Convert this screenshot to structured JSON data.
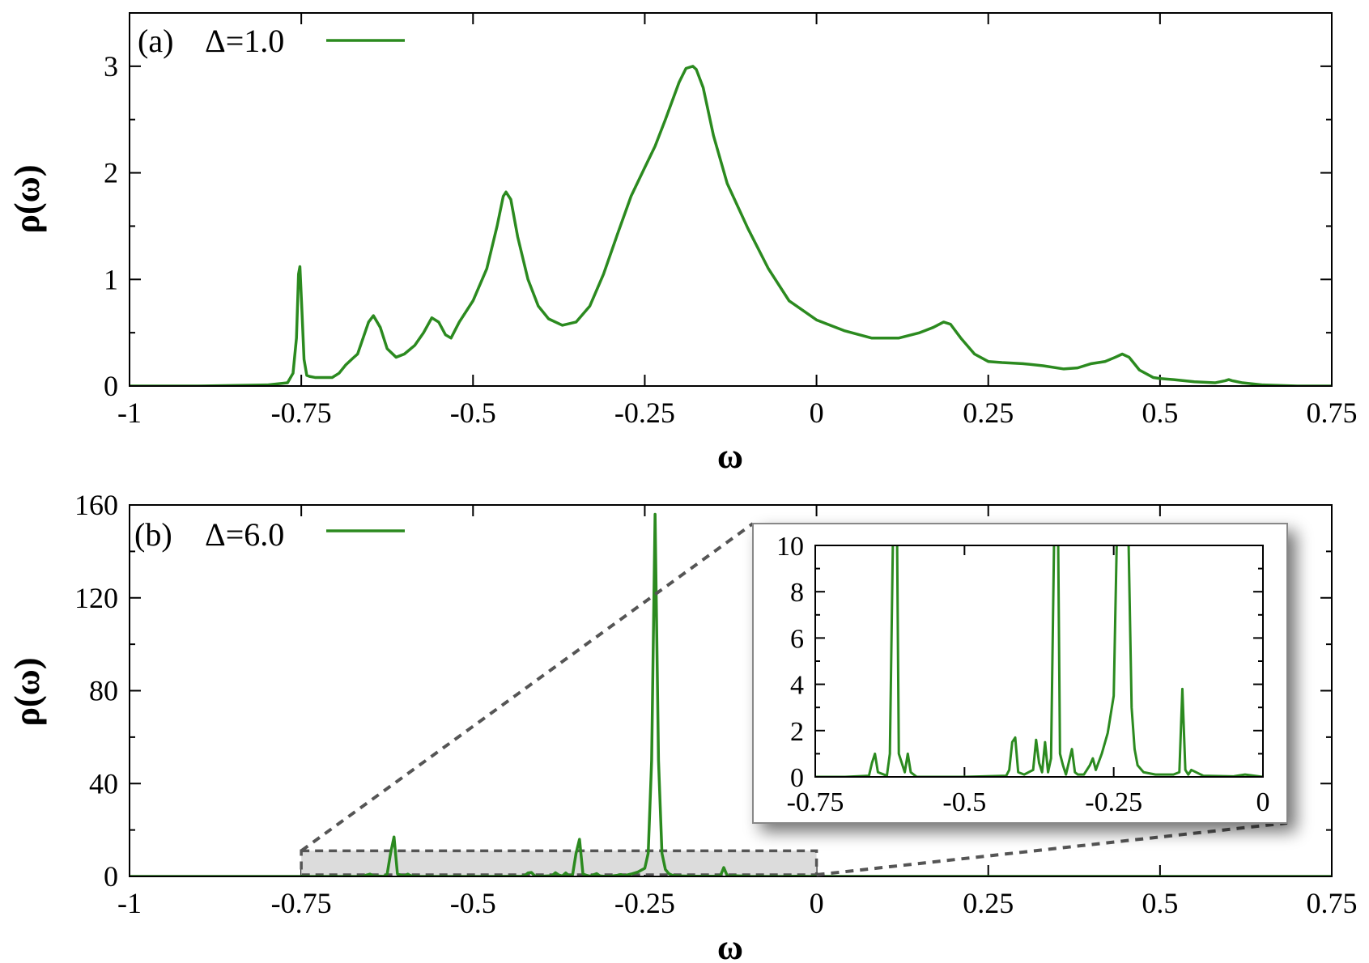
{
  "colors": {
    "line": "#2b8a1f",
    "axis": "#000000",
    "zoom_box_fill": "#dcdcdc",
    "zoom_box_stroke": "#555555",
    "inset_shadow": "#9a9a9a"
  },
  "chart_data": [
    {
      "type": "line",
      "panel_label": "(a)",
      "series": [
        {
          "name": "Δ=1.0",
          "x": [
            -1.0,
            -0.9,
            -0.8,
            -0.77,
            -0.762,
            -0.757,
            -0.754,
            -0.752,
            -0.749,
            -0.746,
            -0.742,
            -0.738,
            -0.73,
            -0.72,
            -0.705,
            -0.695,
            -0.685,
            -0.675,
            -0.668,
            -0.66,
            -0.652,
            -0.645,
            -0.635,
            -0.625,
            -0.612,
            -0.6,
            -0.585,
            -0.572,
            -0.56,
            -0.55,
            -0.54,
            -0.532,
            -0.52,
            -0.5,
            -0.48,
            -0.465,
            -0.456,
            -0.452,
            -0.445,
            -0.435,
            -0.42,
            -0.405,
            -0.39,
            -0.37,
            -0.35,
            -0.33,
            -0.31,
            -0.29,
            -0.27,
            -0.25,
            -0.235,
            -0.22,
            -0.2,
            -0.19,
            -0.18,
            -0.175,
            -0.165,
            -0.15,
            -0.13,
            -0.1,
            -0.07,
            -0.04,
            0.0,
            0.04,
            0.08,
            0.12,
            0.15,
            0.17,
            0.185,
            0.195,
            0.21,
            0.23,
            0.25,
            0.27,
            0.3,
            0.33,
            0.36,
            0.38,
            0.4,
            0.42,
            0.435,
            0.445,
            0.455,
            0.47,
            0.49,
            0.5,
            0.52,
            0.55,
            0.58,
            0.595,
            0.6,
            0.605,
            0.62,
            0.65,
            0.7,
            0.75
          ],
          "y": [
            0.0,
            0.0,
            0.01,
            0.03,
            0.12,
            0.45,
            1.05,
            1.12,
            0.7,
            0.25,
            0.1,
            0.09,
            0.08,
            0.08,
            0.08,
            0.12,
            0.2,
            0.26,
            0.3,
            0.45,
            0.6,
            0.66,
            0.55,
            0.35,
            0.27,
            0.3,
            0.38,
            0.5,
            0.64,
            0.6,
            0.48,
            0.45,
            0.6,
            0.8,
            1.1,
            1.5,
            1.78,
            1.82,
            1.75,
            1.4,
            1.0,
            0.75,
            0.63,
            0.57,
            0.6,
            0.75,
            1.05,
            1.42,
            1.78,
            2.05,
            2.25,
            2.5,
            2.85,
            2.98,
            3.0,
            2.97,
            2.8,
            2.35,
            1.9,
            1.48,
            1.1,
            0.8,
            0.62,
            0.52,
            0.45,
            0.45,
            0.5,
            0.55,
            0.6,
            0.58,
            0.45,
            0.3,
            0.23,
            0.22,
            0.21,
            0.19,
            0.16,
            0.17,
            0.21,
            0.23,
            0.27,
            0.3,
            0.27,
            0.15,
            0.08,
            0.07,
            0.06,
            0.04,
            0.03,
            0.05,
            0.06,
            0.05,
            0.03,
            0.01,
            0.0,
            0.0
          ]
        }
      ],
      "xlabel": "ω",
      "ylabel": "ρ(ω)",
      "xlim": [
        -1.0,
        0.75
      ],
      "ylim": [
        0,
        3.5
      ],
      "xticks": [
        "-1",
        "-0.75",
        "-0.5",
        "-0.25",
        "0",
        "0.25",
        "0.5",
        "0.75"
      ],
      "xtick_values": [
        -1.0,
        -0.75,
        -0.5,
        -0.25,
        0.0,
        0.25,
        0.5,
        0.75
      ],
      "yticks": [
        "0",
        "1",
        "2",
        "3"
      ],
      "ytick_values": [
        0,
        1,
        2,
        3
      ],
      "legend_position": "top-left",
      "grid": false
    },
    {
      "type": "line",
      "panel_label": "(b)",
      "series": [
        {
          "name": "Δ=6.0",
          "x": [
            -1.0,
            -0.8,
            -0.7,
            -0.66,
            -0.655,
            -0.65,
            -0.645,
            -0.63,
            -0.625,
            -0.62,
            -0.615,
            -0.61,
            -0.6,
            -0.595,
            -0.59,
            -0.58,
            -0.5,
            -0.43,
            -0.425,
            -0.42,
            -0.415,
            -0.41,
            -0.4,
            -0.385,
            -0.38,
            -0.375,
            -0.37,
            -0.365,
            -0.36,
            -0.355,
            -0.35,
            -0.345,
            -0.34,
            -0.335,
            -0.33,
            -0.32,
            -0.315,
            -0.31,
            -0.3,
            -0.29,
            -0.285,
            -0.28,
            -0.27,
            -0.26,
            -0.25,
            -0.245,
            -0.24,
            -0.235,
            -0.23,
            -0.225,
            -0.22,
            -0.215,
            -0.21,
            -0.2,
            -0.18,
            -0.15,
            -0.14,
            -0.135,
            -0.13,
            -0.125,
            -0.12,
            -0.1,
            -0.05,
            -0.03,
            0.0,
            0.25,
            0.5,
            0.75
          ],
          "y": [
            0.0,
            0.0,
            0.0,
            0.05,
            0.6,
            1.0,
            0.2,
            0.05,
            1.0,
            10.0,
            17.0,
            1.0,
            0.2,
            1.0,
            0.2,
            0.0,
            0.0,
            0.05,
            0.3,
            1.5,
            1.7,
            0.2,
            0.1,
            0.3,
            1.6,
            0.6,
            0.2,
            1.5,
            0.2,
            0.8,
            10.0,
            16.0,
            1.0,
            0.5,
            0.1,
            1.2,
            0.2,
            0.1,
            0.1,
            0.5,
            0.8,
            0.3,
            1.0,
            1.9,
            3.5,
            10.0,
            50.0,
            156.0,
            50.0,
            10.0,
            3.0,
            1.2,
            0.5,
            0.2,
            0.1,
            0.1,
            0.2,
            3.8,
            0.3,
            0.1,
            0.3,
            0.05,
            0.02,
            0.1,
            0.0,
            0.0,
            0.0,
            0.0
          ]
        }
      ],
      "xlabel": "ω",
      "ylabel": "ρ(ω)",
      "xlim": [
        -1.0,
        0.75
      ],
      "ylim": [
        0,
        160
      ],
      "xticks": [
        "-1",
        "-0.75",
        "-0.5",
        "-0.25",
        "0",
        "0.25",
        "0.5",
        "0.75"
      ],
      "xtick_values": [
        -1.0,
        -0.75,
        -0.5,
        -0.25,
        0.0,
        0.25,
        0.5,
        0.75
      ],
      "yticks": [
        "0",
        "40",
        "80",
        "120",
        "160"
      ],
      "ytick_values": [
        0,
        40,
        80,
        120,
        160
      ],
      "legend_position": "top-left",
      "grid": false,
      "zoom_region": {
        "xlim": [
          -0.75,
          0.0
        ],
        "ylim": [
          0,
          10
        ]
      },
      "inset": {
        "type": "line",
        "xlim": [
          -0.75,
          0.0
        ],
        "ylim": [
          0,
          10
        ],
        "xticks": [
          "-0.75",
          "-0.5",
          "-0.25",
          "0"
        ],
        "xtick_values": [
          -0.75,
          -0.5,
          -0.25,
          0.0
        ],
        "yticks": [
          "0",
          "2",
          "4",
          "6",
          "8",
          "10"
        ],
        "ytick_values": [
          0,
          2,
          4,
          6,
          8,
          10
        ],
        "legend_position": "top-right"
      }
    }
  ]
}
